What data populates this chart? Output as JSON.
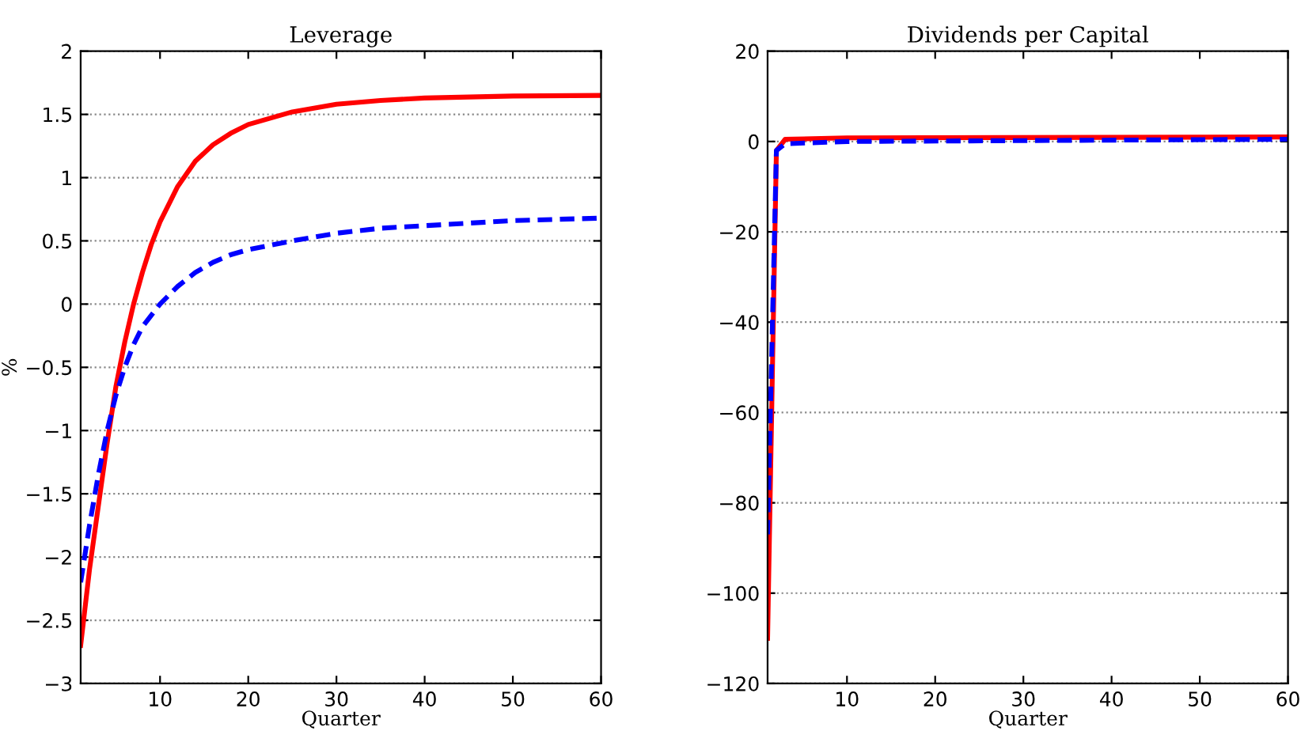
{
  "chart_data": [
    {
      "type": "line",
      "title": "Leverage",
      "xlabel": "Quarter",
      "ylabel": "%",
      "xlim": [
        1,
        60
      ],
      "xticks": [
        10,
        20,
        30,
        40,
        50,
        60
      ],
      "ylim": [
        -3,
        2
      ],
      "yticks": [
        -3,
        -2.5,
        -2,
        -1.5,
        -1,
        -0.5,
        0,
        0.5,
        1,
        1.5,
        2
      ],
      "grid": "y",
      "legend": false,
      "series": [
        {
          "color": "#ff0000",
          "line_style": "solid",
          "x": [
            1,
            2,
            3,
            4,
            5,
            6,
            7,
            8,
            9,
            10,
            12,
            14,
            16,
            18,
            20,
            25,
            30,
            35,
            40,
            50,
            60
          ],
          "values": [
            -2.7,
            -2.1,
            -1.6,
            -1.1,
            -0.65,
            -0.3,
            0.0,
            0.25,
            0.47,
            0.65,
            0.93,
            1.13,
            1.26,
            1.35,
            1.42,
            1.52,
            1.58,
            1.61,
            1.63,
            1.645,
            1.65
          ]
        },
        {
          "color": "#0000ff",
          "line_style": "dashed",
          "x": [
            1,
            2,
            3,
            4,
            5,
            6,
            7,
            8,
            10,
            12,
            14,
            16,
            18,
            20,
            25,
            30,
            35,
            40,
            50,
            60
          ],
          "values": [
            -2.2,
            -1.75,
            -1.35,
            -1.0,
            -0.72,
            -0.5,
            -0.32,
            -0.18,
            0.0,
            0.14,
            0.25,
            0.33,
            0.39,
            0.43,
            0.5,
            0.56,
            0.6,
            0.62,
            0.66,
            0.68
          ]
        }
      ]
    },
    {
      "type": "line",
      "title": "Dividends per Capital",
      "xlabel": "Quarter",
      "xlim": [
        1,
        60
      ],
      "xticks": [
        10,
        20,
        30,
        40,
        50,
        60
      ],
      "ylim": [
        -120,
        20
      ],
      "yticks": [
        -120,
        -100,
        -80,
        -60,
        -40,
        -20,
        0,
        20
      ],
      "grid": "y",
      "legend": false,
      "series": [
        {
          "color": "#ff0000",
          "line_style": "solid",
          "x": [
            1,
            2,
            3,
            10,
            60
          ],
          "values": [
            -110,
            -2,
            0.5,
            0.8,
            1
          ]
        },
        {
          "color": "#0000ff",
          "line_style": "dashed",
          "x": [
            1,
            2,
            3,
            10,
            60
          ],
          "values": [
            -87,
            -2,
            -0.5,
            0,
            0.5
          ]
        }
      ]
    }
  ]
}
